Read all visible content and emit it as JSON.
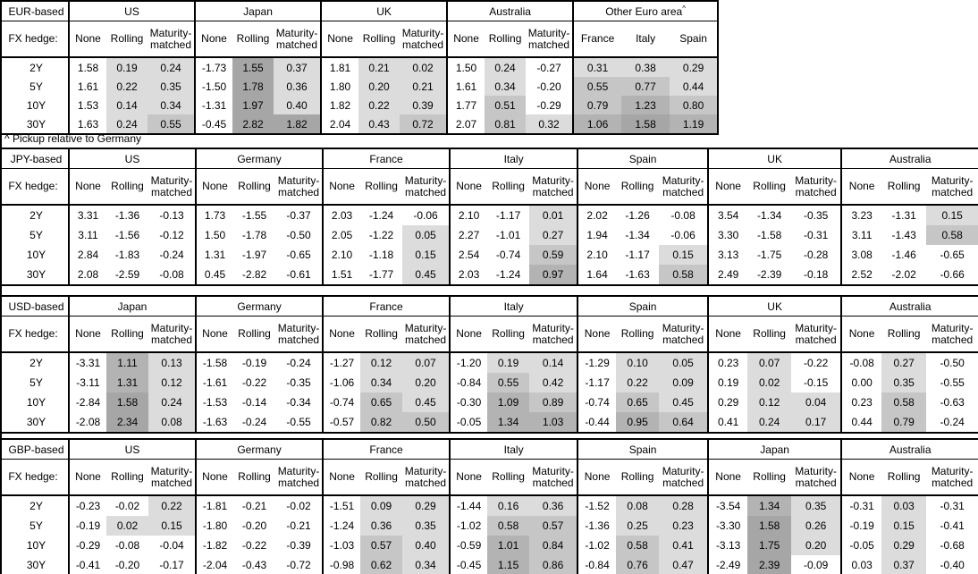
{
  "sheet": {
    "fx_hedge_label": "FX hedge:",
    "tenors": [
      "2Y",
      "5Y",
      "10Y",
      "30Y"
    ],
    "hedge_types": [
      "None",
      "Rolling",
      "Maturity-matched"
    ],
    "footnote": "^ Pickup relative to Germany",
    "shading": {
      "negative": "#ffffff",
      "band_light": "#dcdcdc",
      "band_medium": "#c6c6c6",
      "band_dark": "#b3b3b3",
      "band_darkest": "#a6a6a6"
    }
  },
  "tables": [
    {
      "id": "eur",
      "base_label": "EUR-based",
      "groups": [
        {
          "name": "US",
          "rows": [
            [
              "1.58",
              "0.19",
              "0.24"
            ],
            [
              "1.61",
              "0.22",
              "0.35"
            ],
            [
              "1.53",
              "0.14",
              "0.34"
            ],
            [
              "1.63",
              "0.24",
              "0.55"
            ]
          ]
        },
        {
          "name": "Japan",
          "rows": [
            [
              "-1.73",
              "1.55",
              "0.37"
            ],
            [
              "-1.50",
              "1.78",
              "0.36"
            ],
            [
              "-1.31",
              "1.97",
              "0.40"
            ],
            [
              "-0.45",
              "2.82",
              "1.82"
            ]
          ]
        },
        {
          "name": "UK",
          "rows": [
            [
              "1.81",
              "0.21",
              "0.02"
            ],
            [
              "1.80",
              "0.20",
              "0.21"
            ],
            [
              "1.82",
              "0.22",
              "0.39"
            ],
            [
              "2.04",
              "0.43",
              "0.72"
            ]
          ]
        },
        {
          "name": "Australia",
          "rows": [
            [
              "1.50",
              "0.24",
              "-0.27"
            ],
            [
              "1.61",
              "0.34",
              "-0.20"
            ],
            [
              "1.77",
              "0.51",
              "-0.29"
            ],
            [
              "2.07",
              "0.81",
              "0.32"
            ]
          ]
        },
        {
          "name": "Other Euro area",
          "sup": "^",
          "pickup": true,
          "cols": [
            "France",
            "Italy",
            "Spain"
          ],
          "rows": [
            [
              "0.31",
              "0.38",
              "0.29"
            ],
            [
              "0.55",
              "0.77",
              "0.44"
            ],
            [
              "0.79",
              "1.23",
              "0.80"
            ],
            [
              "1.06",
              "1.58",
              "1.19"
            ]
          ]
        }
      ]
    },
    {
      "id": "jpy",
      "base_label": "JPY-based",
      "groups": [
        {
          "name": "US",
          "rows": [
            [
              "3.31",
              "-1.36",
              "-0.13"
            ],
            [
              "3.11",
              "-1.56",
              "-0.12"
            ],
            [
              "2.84",
              "-1.83",
              "-0.24"
            ],
            [
              "2.08",
              "-2.59",
              "-0.08"
            ]
          ]
        },
        {
          "name": "Germany",
          "rows": [
            [
              "1.73",
              "-1.55",
              "-0.37"
            ],
            [
              "1.50",
              "-1.78",
              "-0.50"
            ],
            [
              "1.31",
              "-1.97",
              "-0.65"
            ],
            [
              "0.45",
              "-2.82",
              "-0.61"
            ]
          ]
        },
        {
          "name": "France",
          "rows": [
            [
              "2.03",
              "-1.24",
              "-0.06"
            ],
            [
              "2.05",
              "-1.22",
              "0.05"
            ],
            [
              "2.10",
              "-1.18",
              "0.15"
            ],
            [
              "1.51",
              "-1.77",
              "0.45"
            ]
          ]
        },
        {
          "name": "Italy",
          "rows": [
            [
              "2.10",
              "-1.17",
              "0.01"
            ],
            [
              "2.27",
              "-1.01",
              "0.27"
            ],
            [
              "2.54",
              "-0.74",
              "0.59"
            ],
            [
              "2.03",
              "-1.24",
              "0.97"
            ]
          ]
        },
        {
          "name": "Spain",
          "rows": [
            [
              "2.02",
              "-1.26",
              "-0.08"
            ],
            [
              "1.94",
              "-1.34",
              "-0.06"
            ],
            [
              "2.10",
              "-1.17",
              "0.15"
            ],
            [
              "1.64",
              "-1.63",
              "0.58"
            ]
          ]
        },
        {
          "name": "UK",
          "rows": [
            [
              "3.54",
              "-1.34",
              "-0.35"
            ],
            [
              "3.30",
              "-1.58",
              "-0.31"
            ],
            [
              "3.13",
              "-1.75",
              "-0.28"
            ],
            [
              "2.49",
              "-2.39",
              "-0.18"
            ]
          ]
        },
        {
          "name": "Australia",
          "rows": [
            [
              "3.23",
              "-1.31",
              "0.15"
            ],
            [
              "3.11",
              "-1.43",
              "0.58"
            ],
            [
              "3.08",
              "-1.46",
              "-0.65"
            ],
            [
              "2.52",
              "-2.02",
              "-0.66"
            ]
          ]
        }
      ]
    },
    {
      "id": "usd",
      "base_label": "USD-based",
      "groups": [
        {
          "name": "Japan",
          "rows": [
            [
              "-3.31",
              "1.11",
              "0.13"
            ],
            [
              "-3.11",
              "1.31",
              "0.12"
            ],
            [
              "-2.84",
              "1.58",
              "0.24"
            ],
            [
              "-2.08",
              "2.34",
              "0.08"
            ]
          ]
        },
        {
          "name": "Germany",
          "rows": [
            [
              "-1.58",
              "-0.19",
              "-0.24"
            ],
            [
              "-1.61",
              "-0.22",
              "-0.35"
            ],
            [
              "-1.53",
              "-0.14",
              "-0.34"
            ],
            [
              "-1.63",
              "-0.24",
              "-0.55"
            ]
          ]
        },
        {
          "name": "France",
          "rows": [
            [
              "-1.27",
              "0.12",
              "0.07"
            ],
            [
              "-1.06",
              "0.34",
              "0.20"
            ],
            [
              "-0.74",
              "0.65",
              "0.45"
            ],
            [
              "-0.57",
              "0.82",
              "0.50"
            ]
          ]
        },
        {
          "name": "Italy",
          "rows": [
            [
              "-1.20",
              "0.19",
              "0.14"
            ],
            [
              "-0.84",
              "0.55",
              "0.42"
            ],
            [
              "-0.30",
              "1.09",
              "0.89"
            ],
            [
              "-0.05",
              "1.34",
              "1.03"
            ]
          ]
        },
        {
          "name": "Spain",
          "rows": [
            [
              "-1.29",
              "0.10",
              "0.05"
            ],
            [
              "-1.17",
              "0.22",
              "0.09"
            ],
            [
              "-0.74",
              "0.65",
              "0.45"
            ],
            [
              "-0.44",
              "0.95",
              "0.64"
            ]
          ]
        },
        {
          "name": "UK",
          "rows": [
            [
              "0.23",
              "0.07",
              "-0.22"
            ],
            [
              "0.19",
              "0.02",
              "-0.15"
            ],
            [
              "0.29",
              "0.12",
              "0.04"
            ],
            [
              "0.41",
              "0.24",
              "0.17"
            ]
          ]
        },
        {
          "name": "Australia",
          "rows": [
            [
              "-0.08",
              "0.27",
              "-0.50"
            ],
            [
              "0.00",
              "0.35",
              "-0.55"
            ],
            [
              "0.23",
              "0.58",
              "-0.63"
            ],
            [
              "0.44",
              "0.79",
              "-0.24"
            ]
          ]
        }
      ]
    },
    {
      "id": "gbp",
      "base_label": "GBP-based",
      "groups": [
        {
          "name": "US",
          "rows": [
            [
              "-0.23",
              "-0.02",
              "0.22"
            ],
            [
              "-0.19",
              "0.02",
              "0.15"
            ],
            [
              "-0.29",
              "-0.08",
              "-0.04"
            ],
            [
              "-0.41",
              "-0.20",
              "-0.17"
            ]
          ]
        },
        {
          "name": "Germany",
          "rows": [
            [
              "-1.81",
              "-0.21",
              "-0.02"
            ],
            [
              "-1.80",
              "-0.20",
              "-0.21"
            ],
            [
              "-1.82",
              "-0.22",
              "-0.39"
            ],
            [
              "-2.04",
              "-0.43",
              "-0.72"
            ]
          ]
        },
        {
          "name": "France",
          "rows": [
            [
              "-1.51",
              "0.09",
              "0.29"
            ],
            [
              "-1.24",
              "0.36",
              "0.35"
            ],
            [
              "-1.03",
              "0.57",
              "0.40"
            ],
            [
              "-0.98",
              "0.62",
              "0.34"
            ]
          ]
        },
        {
          "name": "Italy",
          "rows": [
            [
              "-1.44",
              "0.16",
              "0.36"
            ],
            [
              "-1.02",
              "0.58",
              "0.57"
            ],
            [
              "-0.59",
              "1.01",
              "0.84"
            ],
            [
              "-0.45",
              "1.15",
              "0.86"
            ]
          ]
        },
        {
          "name": "Spain",
          "rows": [
            [
              "-1.52",
              "0.08",
              "0.28"
            ],
            [
              "-1.36",
              "0.25",
              "0.23"
            ],
            [
              "-1.02",
              "0.58",
              "0.41"
            ],
            [
              "-0.84",
              "0.76",
              "0.47"
            ]
          ]
        },
        {
          "name": "Japan",
          "rows": [
            [
              "-3.54",
              "1.34",
              "0.35"
            ],
            [
              "-3.30",
              "1.58",
              "0.26"
            ],
            [
              "-3.13",
              "1.75",
              "0.20"
            ],
            [
              "-2.49",
              "2.39",
              "-0.09"
            ]
          ]
        },
        {
          "name": "Australia",
          "rows": [
            [
              "-0.31",
              "0.03",
              "-0.31"
            ],
            [
              "-0.19",
              "0.15",
              "-0.41"
            ],
            [
              "-0.05",
              "0.29",
              "-0.68"
            ],
            [
              "0.03",
              "0.37",
              "-0.40"
            ]
          ]
        }
      ]
    }
  ]
}
